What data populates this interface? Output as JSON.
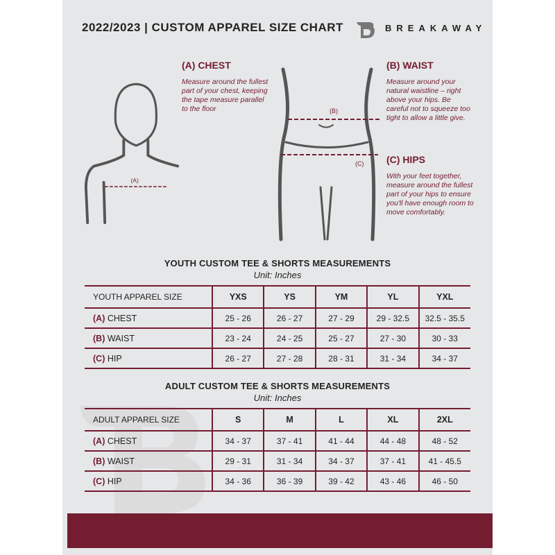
{
  "header": {
    "title": "2022/2023  |  CUSTOM APPAREL SIZE CHART",
    "brand": "BREAKAWAY"
  },
  "guides": {
    "chest": {
      "heading": "(A) CHEST",
      "marker": "(A)",
      "text": "Measure around the fullest part of your chest, keeping the tape measure parallel to the floor"
    },
    "waist": {
      "heading": "(B) WAIST",
      "marker": "(B)",
      "text": "Measure around your natural waistline – right above your hips. Be careful not to squeeze too tight to allow a little give."
    },
    "hips": {
      "heading": "(C) HIPS",
      "marker": "(C)",
      "text": "With your feet together, measure around the fullest part of your hips to ensure you'll have enough room to move comfortably."
    }
  },
  "youth": {
    "title": "YOUTH CUSTOM TEE & SHORTS MEASUREMENTS",
    "unit": "Unit: Inches",
    "size_label": "YOUTH APPAREL SIZE",
    "sizes": [
      "YXS",
      "YS",
      "YM",
      "YL",
      "YXL"
    ],
    "rows": [
      {
        "code": "(A)",
        "name": "CHEST",
        "values": [
          "25 - 26",
          "26 - 27",
          "27 - 29",
          "29 - 32.5",
          "32.5 - 35.5"
        ]
      },
      {
        "code": "(B)",
        "name": "WAIST",
        "values": [
          "23 - 24",
          "24 - 25",
          "25 - 27",
          "27 - 30",
          "30 - 33"
        ]
      },
      {
        "code": "(C)",
        "name": "HIP",
        "values": [
          "26 - 27",
          "27 - 28",
          "28 - 31",
          "31 - 34",
          "34 - 37"
        ]
      }
    ]
  },
  "adult": {
    "title": "ADULT CUSTOM TEE & SHORTS MEASUREMENTS",
    "unit": "Unit: Inches",
    "size_label": "ADULT APPAREL SIZE",
    "sizes": [
      "S",
      "M",
      "L",
      "XL",
      "2XL"
    ],
    "rows": [
      {
        "code": "(A)",
        "name": "CHEST",
        "values": [
          "34 - 37",
          "37 - 41",
          "41 - 44",
          "44 - 48",
          "48 - 52"
        ]
      },
      {
        "code": "(B)",
        "name": "WAIST",
        "values": [
          "29 - 31",
          "31 - 34",
          "34 - 37",
          "37 - 41",
          "41 - 45.5"
        ]
      },
      {
        "code": "(C)",
        "name": "HIP",
        "values": [
          "34 - 36",
          "36 - 39",
          "39 - 42",
          "43 - 46",
          "46 - 50"
        ]
      }
    ]
  },
  "colors": {
    "accent": "#741c30",
    "background": "#e6e7e8"
  }
}
